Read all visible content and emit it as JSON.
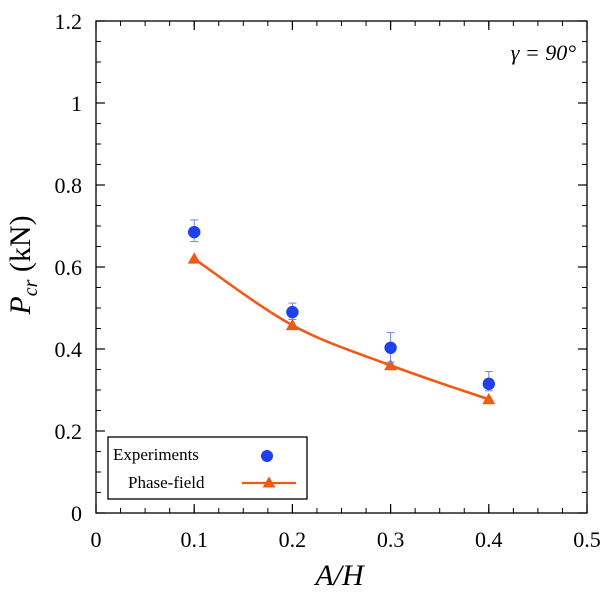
{
  "chart_data": {
    "type": "scatter",
    "x": [
      0.1,
      0.2,
      0.3,
      0.4
    ],
    "series": [
      {
        "name": "Experiments",
        "marker": "circle",
        "color": "#1f3ff0",
        "values": [
          0.685,
          0.49,
          0.403,
          0.315
        ],
        "error_upper": [
          0.715,
          0.512,
          0.44,
          0.345
        ],
        "error_lower": [
          0.662,
          0.472,
          0.368,
          0.298
        ]
      },
      {
        "name": "Phase-field",
        "marker": "triangle",
        "line": "smooth",
        "color": "#f05a14",
        "values": [
          0.62,
          0.458,
          0.36,
          0.277
        ]
      }
    ],
    "xlabel": "A/H",
    "ylabel_main": "P",
    "ylabel_sub": "cr",
    "ylabel_unit": " (kN)",
    "xlim": [
      0,
      0.5
    ],
    "ylim": [
      0,
      1.2
    ],
    "xticks": [
      0,
      0.1,
      0.2,
      0.3,
      0.4,
      0.5
    ],
    "xtick_labels": [
      "0",
      "0.1",
      "0.2",
      "0.3",
      "0.4",
      "0.5"
    ],
    "yticks": [
      0,
      0.2,
      0.4,
      0.6,
      0.8,
      1,
      1.2
    ],
    "ytick_labels": [
      "0",
      "0.2",
      "0.4",
      "0.6",
      "0.8",
      "1",
      "1.2"
    ],
    "annotation": "γ = 90°",
    "legend": {
      "placement": "bottom-left",
      "entries": [
        "Experiments",
        "Phase-field"
      ]
    },
    "grid": false
  }
}
